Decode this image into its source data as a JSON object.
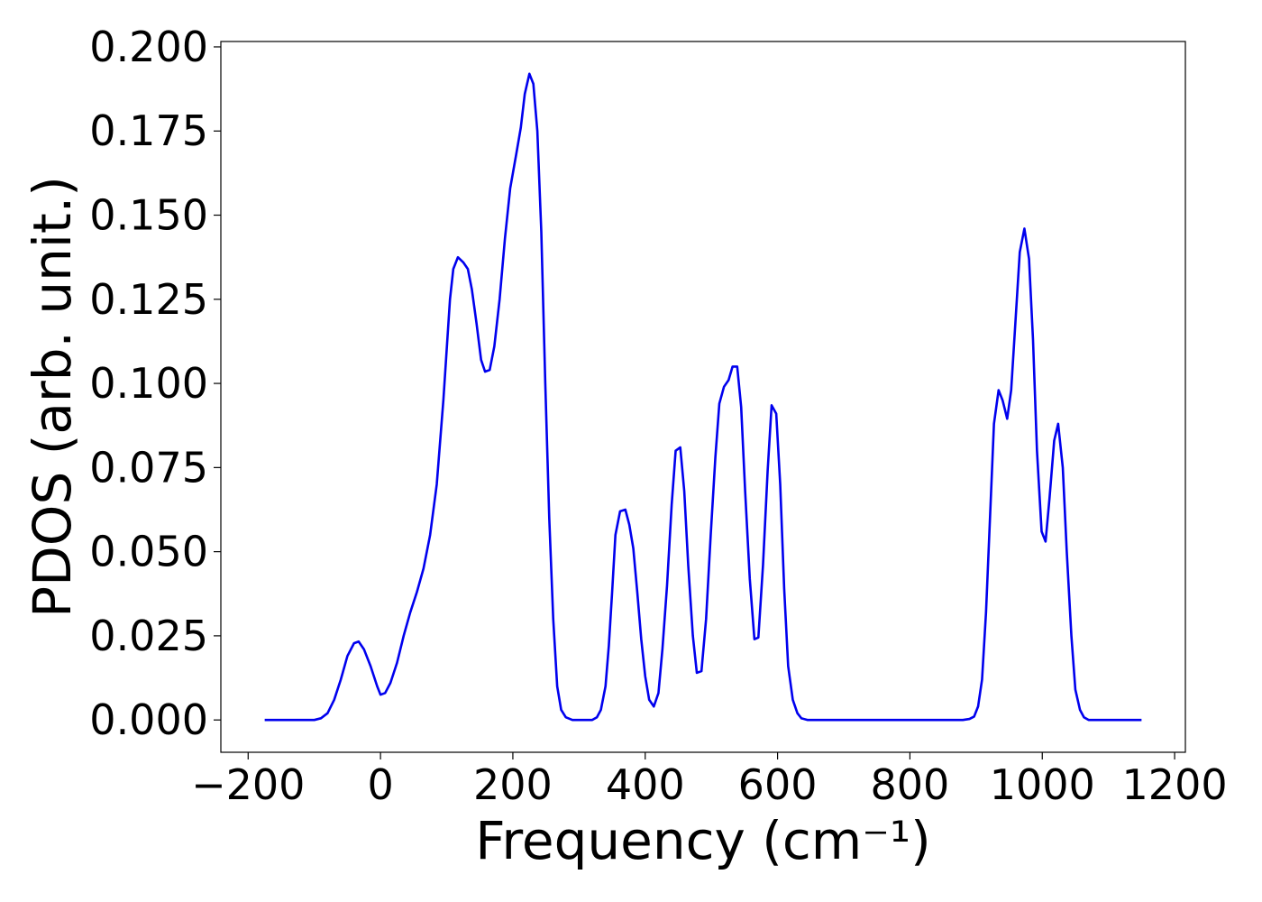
{
  "chart_data": {
    "type": "line",
    "xlabel": "Frequency (cm⁻¹)",
    "ylabel": "PDOS (arb. unit.)",
    "xlim": [
      -241.25,
      1216.25
    ],
    "ylim": [
      -0.0096,
      0.2016
    ],
    "xticks": [
      {
        "value": -200,
        "label": "−200"
      },
      0,
      200,
      400,
      600,
      800,
      1000,
      1200
    ],
    "yticks": [
      {
        "value": 0,
        "label": "0.000"
      },
      {
        "value": 0.025,
        "label": "0.025"
      },
      {
        "value": 0.05,
        "label": "0.050"
      },
      {
        "value": 0.075,
        "label": "0.075"
      },
      {
        "value": 0.1,
        "label": "0.100"
      },
      {
        "value": 0.125,
        "label": "0.125"
      },
      {
        "value": 0.15,
        "label": "0.150"
      },
      {
        "value": 0.175,
        "label": "0.175"
      },
      {
        "value": 0.2,
        "label": "0.200"
      }
    ],
    "grid": false,
    "x": [
      -175,
      -100,
      -90,
      -80,
      -70,
      -60,
      -50,
      -40,
      -33,
      -25,
      -15,
      -5,
      0,
      7,
      15,
      25,
      35,
      45,
      55,
      65,
      75,
      85,
      95,
      100,
      105,
      110,
      117,
      125,
      132,
      138,
      145,
      152,
      158,
      165,
      172,
      180,
      188,
      196,
      205,
      212,
      218,
      225,
      231,
      237,
      243,
      249,
      255,
      261,
      267,
      273,
      280,
      290,
      320,
      327,
      333,
      340,
      345,
      350,
      355,
      362,
      370,
      376,
      382,
      388,
      394,
      400,
      406,
      413,
      420,
      426,
      433,
      440,
      446,
      453,
      459,
      465,
      472,
      478,
      485,
      492,
      499,
      506,
      512,
      519,
      526,
      532,
      539,
      545,
      551,
      558,
      565,
      571,
      578,
      585,
      591,
      598,
      604,
      610,
      616,
      623,
      630,
      636,
      645,
      880,
      890,
      897,
      903,
      909,
      915,
      921,
      927,
      934,
      940,
      947,
      953,
      960,
      966,
      973,
      980,
      986,
      992,
      999,
      1005,
      1011,
      1018,
      1024,
      1031,
      1037,
      1044,
      1050,
      1057,
      1063,
      1070,
      1150
    ],
    "series": [
      {
        "color": "#0000ee",
        "values": [
          0,
          0,
          0.0005,
          0.002,
          0.006,
          0.012,
          0.019,
          0.0228,
          0.0233,
          0.021,
          0.016,
          0.01,
          0.0075,
          0.008,
          0.011,
          0.017,
          0.025,
          0.032,
          0.038,
          0.045,
          0.055,
          0.07,
          0.095,
          0.11,
          0.125,
          0.134,
          0.1375,
          0.136,
          0.134,
          0.128,
          0.118,
          0.107,
          0.1035,
          0.104,
          0.111,
          0.125,
          0.143,
          0.158,
          0.168,
          0.176,
          0.186,
          0.192,
          0.189,
          0.175,
          0.145,
          0.1,
          0.06,
          0.03,
          0.01,
          0.003,
          0.0008,
          0,
          0,
          0.0008,
          0.003,
          0.01,
          0.022,
          0.038,
          0.055,
          0.062,
          0.0625,
          0.058,
          0.051,
          0.038,
          0.024,
          0.013,
          0.006,
          0.004,
          0.008,
          0.021,
          0.04,
          0.064,
          0.08,
          0.081,
          0.068,
          0.046,
          0.025,
          0.014,
          0.0145,
          0.03,
          0.055,
          0.078,
          0.094,
          0.099,
          0.101,
          0.105,
          0.105,
          0.093,
          0.068,
          0.042,
          0.024,
          0.0245,
          0.046,
          0.074,
          0.0935,
          0.091,
          0.07,
          0.039,
          0.016,
          0.006,
          0.002,
          0.0005,
          0,
          0,
          0.0003,
          0.001,
          0.004,
          0.012,
          0.032,
          0.06,
          0.088,
          0.098,
          0.095,
          0.0895,
          0.098,
          0.12,
          0.139,
          0.146,
          0.137,
          0.113,
          0.08,
          0.056,
          0.053,
          0.066,
          0.083,
          0.088,
          0.075,
          0.05,
          0.025,
          0.009,
          0.003,
          0.0008,
          0,
          0
        ]
      }
    ]
  }
}
